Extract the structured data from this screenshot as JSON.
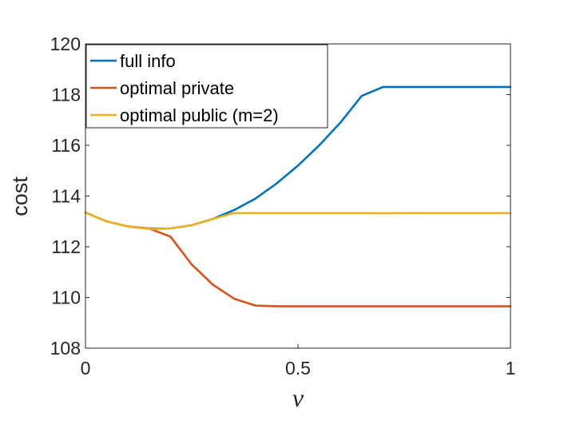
{
  "chart_data": {
    "type": "line",
    "title": "",
    "xlabel": "ν",
    "ylabel": "cost",
    "xlim": [
      0,
      1
    ],
    "ylim": [
      108,
      120
    ],
    "xticks": [
      0,
      0.5,
      1
    ],
    "xtick_labels": [
      "0",
      "0.5",
      "1"
    ],
    "yticks": [
      108,
      110,
      112,
      114,
      116,
      118,
      120
    ],
    "ytick_labels": [
      "108",
      "110",
      "112",
      "114",
      "116",
      "118",
      "120"
    ],
    "grid": false,
    "legend_position": "top-left",
    "series": [
      {
        "name": "full info",
        "color": "#0072BD",
        "x": [
          0,
          0.05,
          0.1,
          0.15,
          0.2,
          0.25,
          0.3,
          0.35,
          0.4,
          0.45,
          0.5,
          0.55,
          0.6,
          0.65,
          0.7,
          0.75,
          0.8,
          0.85,
          0.9,
          0.95,
          1.0
        ],
        "y": [
          113.35,
          113.0,
          112.8,
          112.72,
          112.72,
          112.85,
          113.1,
          113.45,
          113.9,
          114.5,
          115.2,
          116.0,
          116.9,
          117.95,
          118.3,
          118.3,
          118.3,
          118.3,
          118.3,
          118.3,
          118.3
        ]
      },
      {
        "name": "optimal private",
        "color": "#D95319",
        "x": [
          0,
          0.05,
          0.1,
          0.15,
          0.2,
          0.25,
          0.3,
          0.35,
          0.4,
          0.45,
          0.5,
          0.55,
          0.6,
          0.65,
          0.7,
          0.75,
          0.8,
          0.85,
          0.9,
          0.95,
          1.0
        ],
        "y": [
          113.35,
          113.0,
          112.8,
          112.72,
          112.4,
          111.3,
          110.5,
          109.95,
          109.68,
          109.65,
          109.65,
          109.65,
          109.65,
          109.65,
          109.65,
          109.65,
          109.65,
          109.65,
          109.65,
          109.65,
          109.65
        ]
      },
      {
        "name": "optimal public (m=2)",
        "color": "#EDB120",
        "x": [
          0,
          0.05,
          0.1,
          0.15,
          0.2,
          0.25,
          0.3,
          0.35,
          0.4,
          0.45,
          0.5,
          0.55,
          0.6,
          0.65,
          0.7,
          0.75,
          0.8,
          0.85,
          0.9,
          0.95,
          1.0
        ],
        "y": [
          113.35,
          113.0,
          112.8,
          112.7,
          112.72,
          112.85,
          113.1,
          113.33,
          113.33,
          113.33,
          113.33,
          113.33,
          113.33,
          113.33,
          113.32,
          113.33,
          113.33,
          113.33,
          113.33,
          113.33,
          113.33
        ]
      }
    ]
  }
}
